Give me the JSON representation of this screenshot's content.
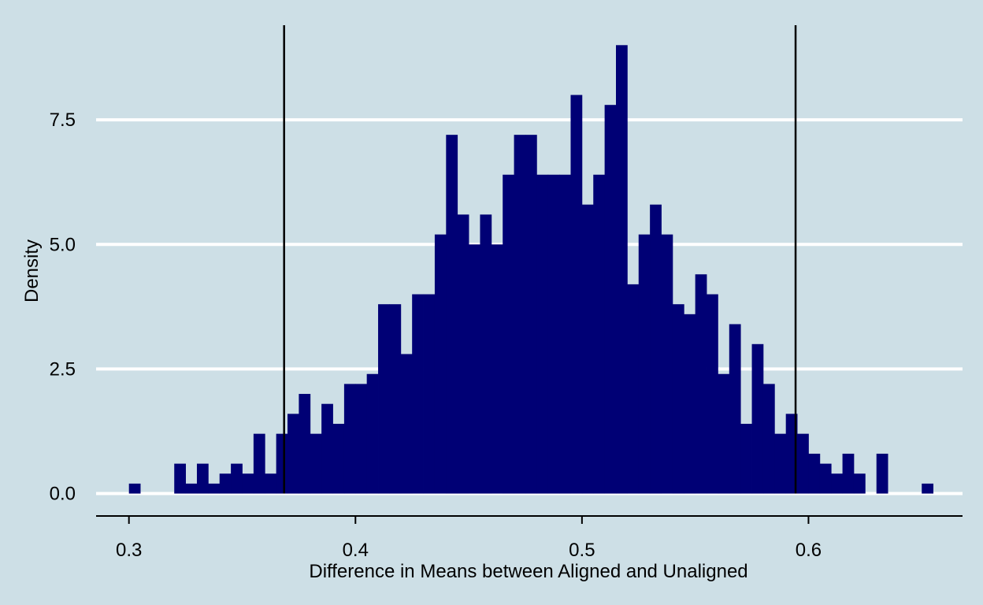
{
  "chart_data": {
    "type": "histogram",
    "xlabel": "Difference in Means between Aligned and Unaligned",
    "ylabel": "Density",
    "xlim": [
      0.2855,
      0.668
    ],
    "ylim": [
      -0.45,
      9.4
    ],
    "xticks": [
      0.3,
      0.4,
      0.5,
      0.6
    ],
    "xtick_labels": [
      "0.3",
      "0.4",
      "0.5",
      "0.6"
    ],
    "yticks": [
      0,
      2.5,
      5,
      7.5
    ],
    "ytick_labels": [
      "0.0",
      "2.5",
      "5.0",
      "7.5"
    ],
    "grid": "horizontal",
    "bin_start": 0.3,
    "bin_width": 0.005,
    "densities": [
      0.2,
      0,
      0,
      0,
      0.6,
      0.2,
      0.6,
      0.2,
      0.4,
      0.6,
      0.4,
      1.2,
      0.4,
      1.2,
      1.6,
      2.0,
      1.2,
      1.8,
      1.4,
      2.2,
      2.2,
      2.4,
      3.8,
      3.8,
      2.8,
      4.0,
      4.0,
      5.2,
      7.2,
      5.6,
      5.0,
      5.6,
      5.0,
      6.4,
      7.2,
      7.2,
      6.4,
      6.4,
      6.4,
      8.0,
      5.8,
      6.4,
      7.8,
      9.0,
      4.2,
      5.2,
      5.8,
      5.2,
      3.8,
      3.6,
      4.4,
      4.0,
      2.4,
      3.4,
      1.4,
      3.0,
      2.2,
      1.2,
      1.6,
      1.2,
      0.8,
      0.6,
      0.4,
      0.8,
      0.4,
      0,
      0.8,
      0,
      0,
      0,
      0.2
    ],
    "vertical_lines": [
      0.3685,
      0.5943
    ],
    "bar_color": "#000075",
    "background_color": "#cddfe6",
    "grid_color": "#ffffff",
    "line_color": "#000000"
  }
}
